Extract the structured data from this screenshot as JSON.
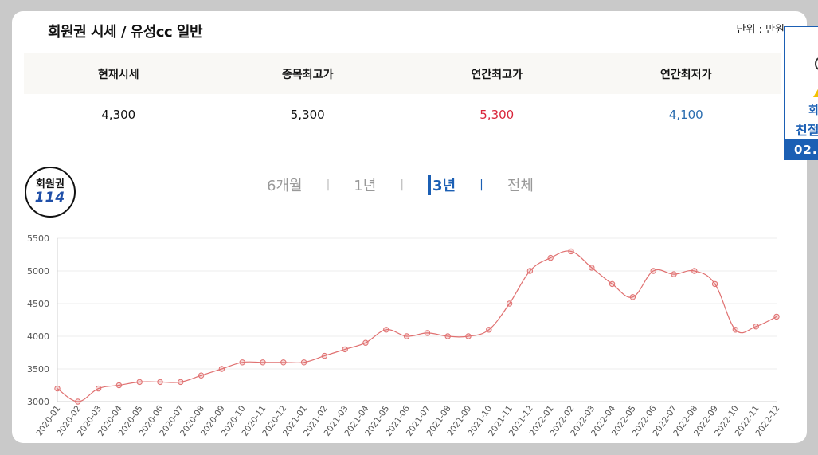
{
  "header": {
    "title": "회원권 시세 / 유성cc 일반",
    "unit": "단위 : 만원"
  },
  "price_table": {
    "headers": [
      "현재시세",
      "종목최고가",
      "연간최고가",
      "연간최저가"
    ],
    "values": [
      "4,300",
      "5,300",
      "5,300",
      "4,100"
    ]
  },
  "logo": {
    "line1": "회원권",
    "line2": "114"
  },
  "period_tabs": [
    {
      "label": "6개월",
      "active": false
    },
    {
      "label": "1년",
      "active": false
    },
    {
      "label": "3년",
      "active": true
    },
    {
      "label": "전체",
      "active": false
    }
  ],
  "side_ad": {
    "line1": "회",
    "line2": "친절",
    "date": "02."
  },
  "colors": {
    "line": "#e07070",
    "accent": "#1b5fb4",
    "high": "#d9263b",
    "low": "#2a6db0"
  },
  "chart_data": {
    "type": "line",
    "title": "",
    "xlabel": "",
    "ylabel": "",
    "ylim": [
      3000,
      5500
    ],
    "yticks": [
      3000,
      3500,
      4000,
      4500,
      5000,
      5500
    ],
    "grid": true,
    "categories": [
      "2020-01",
      "2020-02",
      "2020-03",
      "2020-04",
      "2020-05",
      "2020-06",
      "2020-07",
      "2020-08",
      "2020-09",
      "2020-10",
      "2020-11",
      "2020-12",
      "2021-01",
      "2021-02",
      "2021-03",
      "2021-04",
      "2021-05",
      "2021-06",
      "2021-07",
      "2021-08",
      "2021-09",
      "2021-10",
      "2021-11",
      "2021-12",
      "2022-01",
      "2022-02",
      "2022-03",
      "2022-04",
      "2022-05",
      "2022-06",
      "2022-07",
      "2022-08",
      "2022-09",
      "2022-10",
      "2022-11",
      "2022-12"
    ],
    "values": [
      3200,
      3000,
      3200,
      3250,
      3300,
      3300,
      3300,
      3400,
      3500,
      3600,
      3600,
      3600,
      3600,
      3700,
      3800,
      3900,
      4100,
      4000,
      4050,
      4000,
      4000,
      4100,
      4500,
      5000,
      5200,
      5300,
      5050,
      4800,
      4600,
      5000,
      4950,
      5000,
      4800,
      4100,
      4150,
      4300
    ]
  }
}
